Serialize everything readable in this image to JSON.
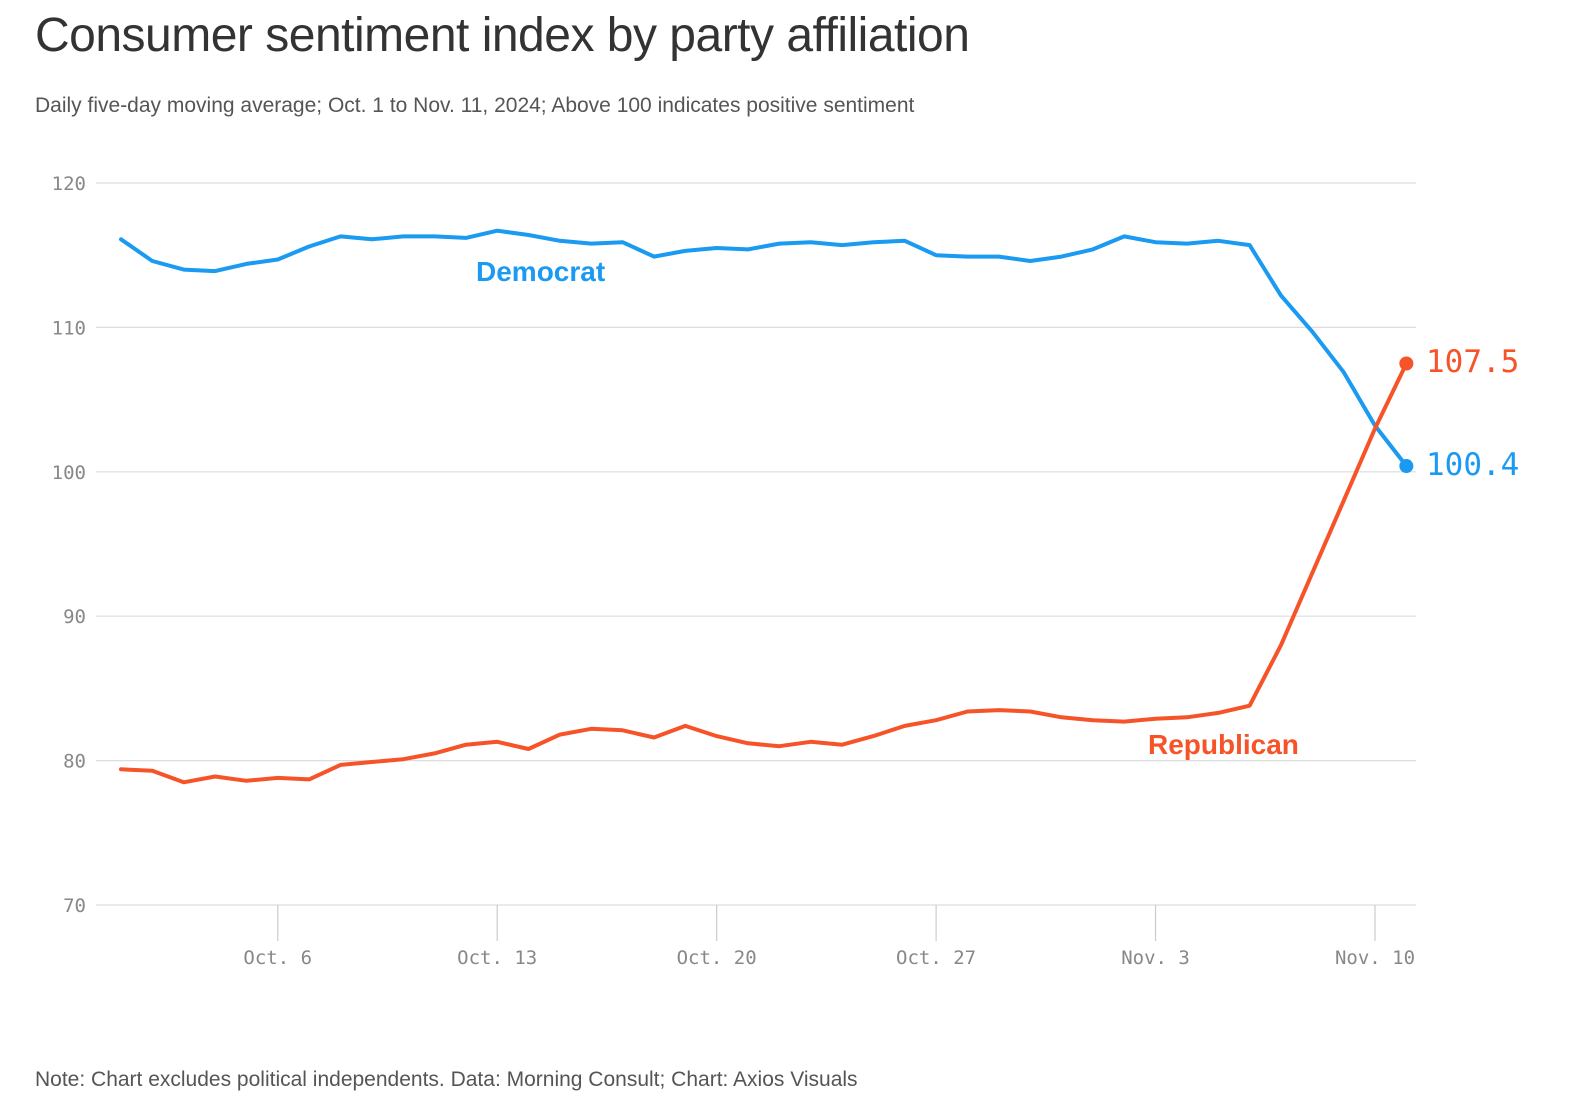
{
  "title": "Consumer sentiment index by party affiliation",
  "subtitle": "Daily five-day moving average; Oct. 1 to Nov. 11, 2024; Above 100 indicates positive sentiment",
  "note": "Note: Chart excludes political independents. Data: Morning Consult; Chart: Axios Visuals",
  "colors": {
    "democrat": "#1a9af0",
    "republican": "#f65328",
    "grid": "#dddddd"
  },
  "chart_data": {
    "type": "line",
    "ylim": [
      70,
      120
    ],
    "yticks": [
      70,
      80,
      90,
      100,
      110,
      120
    ],
    "xticks": [
      {
        "date": "2024-10-06",
        "label": "Oct. 6"
      },
      {
        "date": "2024-10-13",
        "label": "Oct. 13"
      },
      {
        "date": "2024-10-20",
        "label": "Oct. 20"
      },
      {
        "date": "2024-10-27",
        "label": "Oct. 27"
      },
      {
        "date": "2024-11-03",
        "label": "Nov. 3"
      },
      {
        "date": "2024-11-10",
        "label": "Nov. 10"
      }
    ],
    "x": [
      "2024-10-01",
      "2024-10-02",
      "2024-10-03",
      "2024-10-04",
      "2024-10-05",
      "2024-10-06",
      "2024-10-07",
      "2024-10-08",
      "2024-10-09",
      "2024-10-10",
      "2024-10-11",
      "2024-10-12",
      "2024-10-13",
      "2024-10-14",
      "2024-10-15",
      "2024-10-16",
      "2024-10-17",
      "2024-10-18",
      "2024-10-19",
      "2024-10-20",
      "2024-10-21",
      "2024-10-22",
      "2024-10-23",
      "2024-10-24",
      "2024-10-25",
      "2024-10-26",
      "2024-10-27",
      "2024-10-28",
      "2024-10-29",
      "2024-10-30",
      "2024-10-31",
      "2024-11-01",
      "2024-11-02",
      "2024-11-03",
      "2024-11-04",
      "2024-11-05",
      "2024-11-06",
      "2024-11-07",
      "2024-11-08",
      "2024-11-09",
      "2024-11-10",
      "2024-11-11"
    ],
    "series": [
      {
        "name": "Democrat",
        "color": "#1a9af0",
        "end_label": "100.4",
        "values": [
          116.1,
          114.6,
          114.0,
          113.9,
          114.4,
          114.7,
          115.6,
          116.3,
          116.1,
          116.3,
          116.3,
          116.2,
          116.7,
          116.4,
          116.0,
          115.8,
          115.9,
          114.9,
          115.3,
          115.5,
          115.4,
          115.8,
          115.9,
          115.7,
          115.9,
          116.0,
          115.0,
          114.9,
          114.9,
          114.6,
          114.9,
          115.4,
          116.3,
          115.9,
          115.8,
          116.0,
          115.7,
          112.2,
          109.7,
          106.9,
          103.2,
          100.4
        ]
      },
      {
        "name": "Republican",
        "color": "#f65328",
        "end_label": "107.5",
        "values": [
          79.4,
          79.3,
          78.5,
          78.9,
          78.6,
          78.8,
          78.7,
          79.7,
          79.9,
          80.1,
          80.5,
          81.1,
          81.3,
          80.8,
          81.8,
          82.2,
          82.1,
          81.6,
          82.4,
          81.7,
          81.2,
          81.0,
          81.3,
          81.1,
          81.7,
          82.4,
          82.8,
          83.4,
          83.5,
          83.4,
          83.0,
          82.8,
          82.7,
          82.9,
          83.0,
          83.3,
          83.8,
          88.0,
          93.0,
          98.0,
          103.0,
          107.5
        ]
      }
    ]
  }
}
